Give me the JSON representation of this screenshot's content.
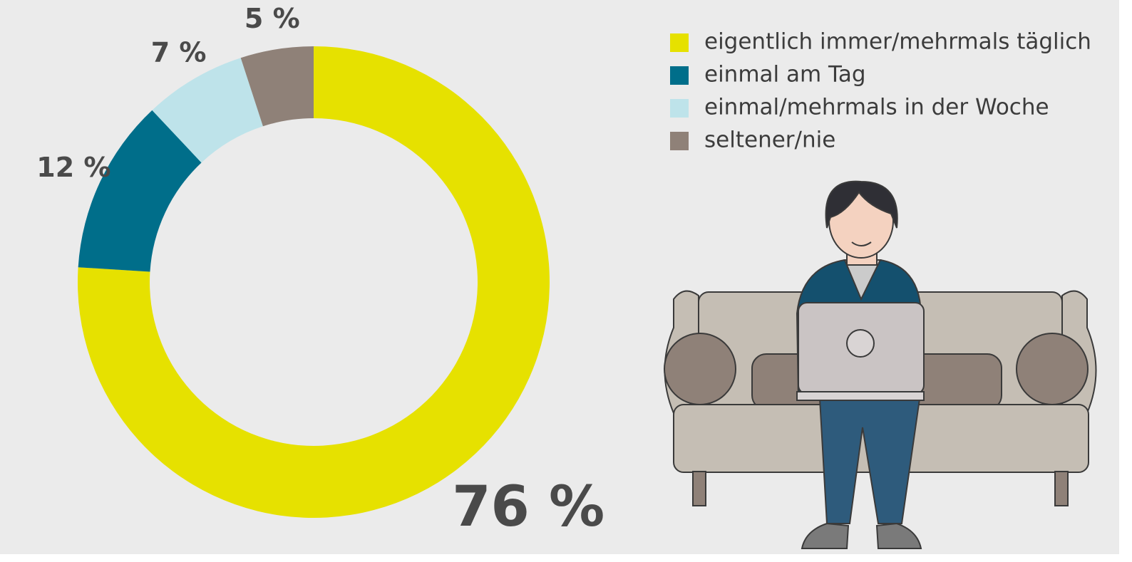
{
  "chart_data": {
    "type": "donut",
    "categories": [
      "eigentlich immer/mehrmals täglich",
      "einmal am Tag",
      "einmal/mehrmals in der Woche",
      "seltener/nie"
    ],
    "values": [
      76,
      12,
      7,
      5
    ],
    "value_labels": [
      "76 %",
      "12 %",
      "7 %",
      "5 %"
    ],
    "colors": [
      "#e6e100",
      "#006e8a",
      "#bee3ea",
      "#8f8178"
    ],
    "legend": "top-right"
  }
}
